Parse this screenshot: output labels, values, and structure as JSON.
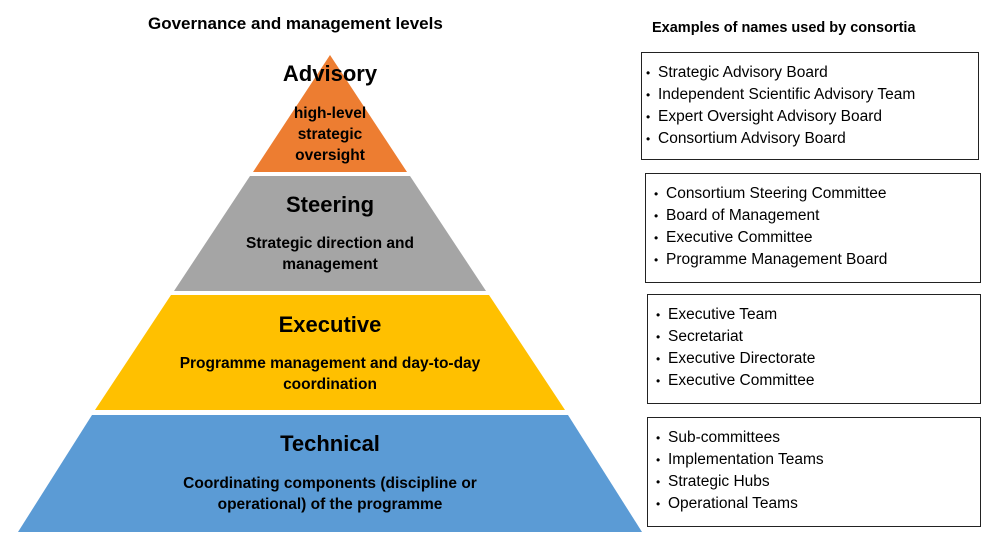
{
  "left_title": "Governance and management levels",
  "right_title": "Examples of names used by consortia",
  "levels": [
    {
      "title": "Advisory",
      "description": "high-level strategic oversight",
      "color": "#ED7D31"
    },
    {
      "title": "Steering",
      "description": "Strategic direction and management",
      "color": "#A5A5A5"
    },
    {
      "title": "Executive",
      "description": "Programme management and day-to-day coordination",
      "color": "#FFC000"
    },
    {
      "title": "Technical",
      "description": "Coordinating components (discipline or operational) of the programme",
      "color": "#5B9BD5"
    }
  ],
  "examples": [
    [
      "Strategic Advisory Board",
      "Independent Scientific Advisory Team",
      "Expert Oversight Advisory Board",
      "Consortium Advisory Board"
    ],
    [
      "Consortium Steering Committee",
      "Board of Management",
      "Executive Committee",
      "Programme Management Board"
    ],
    [
      "Executive Team",
      "Secretariat",
      "Executive Directorate",
      "Executive Committee"
    ],
    [
      "Sub-committees",
      "Implementation Teams",
      "Strategic Hubs",
      "Operational Teams"
    ]
  ]
}
